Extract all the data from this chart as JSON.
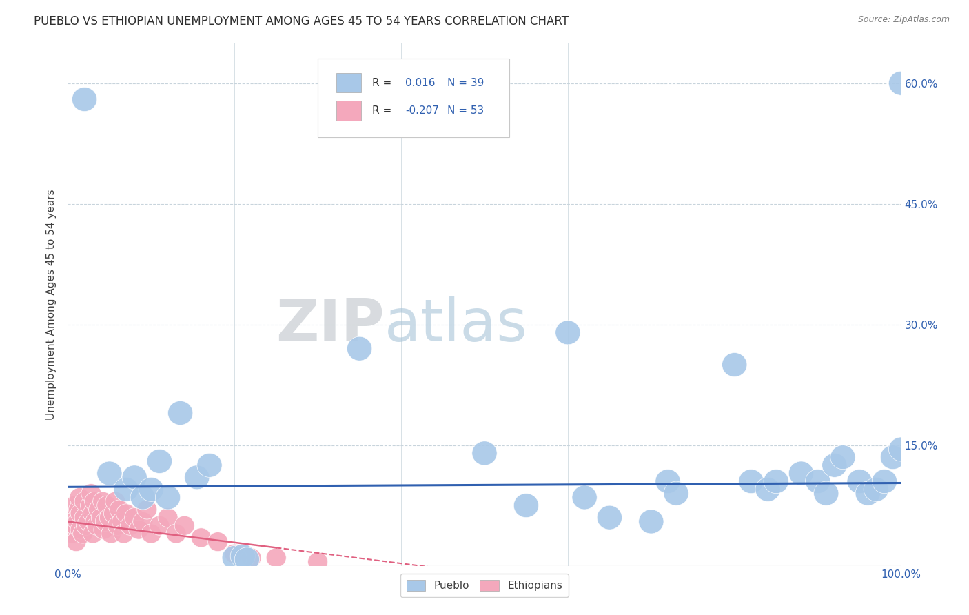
{
  "title": "PUEBLO VS ETHIOPIAN UNEMPLOYMENT AMONG AGES 45 TO 54 YEARS CORRELATION CHART",
  "source": "Source: ZipAtlas.com",
  "ylabel": "Unemployment Among Ages 45 to 54 years",
  "xlim": [
    0,
    1.0
  ],
  "ylim": [
    0,
    0.65
  ],
  "xticks": [
    0.0,
    0.1,
    0.2,
    0.3,
    0.4,
    0.5,
    0.6,
    0.7,
    0.8,
    0.9,
    1.0
  ],
  "xticklabels": [
    "0.0%",
    "",
    "",
    "",
    "",
    "",
    "",
    "",
    "",
    "",
    "100.0%"
  ],
  "ytick_positions": [
    0.0,
    0.15,
    0.3,
    0.45,
    0.6
  ],
  "ytick_labels": [
    "",
    "15.0%",
    "30.0%",
    "45.0%",
    "60.0%"
  ],
  "pueblo_color": "#a8c8e8",
  "ethiopian_color": "#f4a8bc",
  "pueblo_line_color": "#3060b0",
  "ethiopian_line_color": "#e06080",
  "background_color": "#ffffff",
  "grid_color": "#c8d4dc",
  "pueblo_R": 0.016,
  "pueblo_N": 39,
  "ethiopian_R": -0.207,
  "ethiopian_N": 53,
  "legend_label_color": "#3060b0",
  "legend_R_label_color": "#404040",
  "pueblo_points": [
    [
      0.02,
      0.58
    ],
    [
      0.05,
      0.115
    ],
    [
      0.07,
      0.095
    ],
    [
      0.08,
      0.11
    ],
    [
      0.09,
      0.085
    ],
    [
      0.1,
      0.095
    ],
    [
      0.11,
      0.13
    ],
    [
      0.12,
      0.085
    ],
    [
      0.135,
      0.19
    ],
    [
      0.155,
      0.11
    ],
    [
      0.17,
      0.125
    ],
    [
      0.2,
      0.01
    ],
    [
      0.21,
      0.012
    ],
    [
      0.215,
      0.008
    ],
    [
      0.35,
      0.27
    ],
    [
      0.5,
      0.14
    ],
    [
      0.55,
      0.075
    ],
    [
      0.6,
      0.29
    ],
    [
      0.62,
      0.085
    ],
    [
      0.65,
      0.06
    ],
    [
      0.7,
      0.055
    ],
    [
      0.72,
      0.105
    ],
    [
      0.73,
      0.09
    ],
    [
      0.8,
      0.25
    ],
    [
      0.82,
      0.105
    ],
    [
      0.84,
      0.095
    ],
    [
      0.85,
      0.105
    ],
    [
      0.88,
      0.115
    ],
    [
      0.9,
      0.105
    ],
    [
      0.91,
      0.09
    ],
    [
      0.92,
      0.125
    ],
    [
      0.93,
      0.135
    ],
    [
      0.95,
      0.105
    ],
    [
      0.96,
      0.09
    ],
    [
      0.97,
      0.095
    ],
    [
      0.98,
      0.105
    ],
    [
      0.99,
      0.135
    ],
    [
      1.0,
      0.145
    ],
    [
      1.0,
      0.6
    ]
  ],
  "ethiopian_points": [
    [
      0.005,
      0.04
    ],
    [
      0.007,
      0.06
    ],
    [
      0.008,
      0.075
    ],
    [
      0.009,
      0.05
    ],
    [
      0.01,
      0.03
    ],
    [
      0.012,
      0.055
    ],
    [
      0.013,
      0.07
    ],
    [
      0.014,
      0.085
    ],
    [
      0.015,
      0.045
    ],
    [
      0.015,
      0.065
    ],
    [
      0.018,
      0.04
    ],
    [
      0.02,
      0.06
    ],
    [
      0.02,
      0.08
    ],
    [
      0.022,
      0.05
    ],
    [
      0.025,
      0.055
    ],
    [
      0.027,
      0.075
    ],
    [
      0.028,
      0.09
    ],
    [
      0.03,
      0.04
    ],
    [
      0.03,
      0.065
    ],
    [
      0.032,
      0.08
    ],
    [
      0.033,
      0.055
    ],
    [
      0.035,
      0.05
    ],
    [
      0.037,
      0.07
    ],
    [
      0.04,
      0.06
    ],
    [
      0.042,
      0.08
    ],
    [
      0.043,
      0.045
    ],
    [
      0.045,
      0.055
    ],
    [
      0.047,
      0.075
    ],
    [
      0.05,
      0.06
    ],
    [
      0.052,
      0.04
    ],
    [
      0.055,
      0.065
    ],
    [
      0.057,
      0.08
    ],
    [
      0.06,
      0.05
    ],
    [
      0.062,
      0.07
    ],
    [
      0.065,
      0.055
    ],
    [
      0.067,
      0.04
    ],
    [
      0.07,
      0.065
    ],
    [
      0.075,
      0.05
    ],
    [
      0.08,
      0.06
    ],
    [
      0.085,
      0.045
    ],
    [
      0.09,
      0.055
    ],
    [
      0.095,
      0.07
    ],
    [
      0.1,
      0.04
    ],
    [
      0.11,
      0.05
    ],
    [
      0.12,
      0.06
    ],
    [
      0.13,
      0.04
    ],
    [
      0.14,
      0.05
    ],
    [
      0.16,
      0.035
    ],
    [
      0.18,
      0.03
    ],
    [
      0.2,
      0.015
    ],
    [
      0.22,
      0.01
    ],
    [
      0.25,
      0.01
    ],
    [
      0.3,
      0.005
    ]
  ]
}
